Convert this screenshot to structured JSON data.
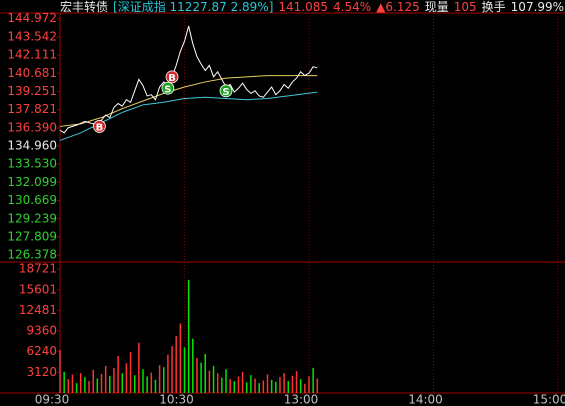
{
  "chart_data": {
    "type": "line",
    "header": [
      {
        "text": "宏丰转债",
        "color": "#e8e8e8"
      },
      {
        "text": "[深证成指 11227.87 2.89%]",
        "color": "#28c8d8"
      },
      {
        "text": "141.085",
        "color": "#ff4040"
      },
      {
        "text": "4.54%",
        "color": "#ff4040"
      },
      {
        "text": "▲6.125",
        "color": "#ff4040"
      },
      {
        "text": "现量",
        "color": "#e8e8e8"
      },
      {
        "text": "105",
        "color": "#ff4040"
      },
      {
        "text": "换手",
        "color": "#e8e8e8"
      },
      {
        "text": "107.99%",
        "color": "#e8e8e8"
      }
    ],
    "xlim": [
      0,
      240
    ],
    "xticks": [
      {
        "value": 0,
        "label": "09:30"
      },
      {
        "value": 60,
        "label": "10:30"
      },
      {
        "value": 120,
        "label": "13:00"
      },
      {
        "value": 180,
        "label": "14:00"
      },
      {
        "value": 240,
        "label": "15:00"
      }
    ],
    "ylim": [
      125.84,
      145.42
    ],
    "yticks": [
      144.972,
      143.542,
      142.111,
      140.681,
      139.251,
      137.821,
      {
        "value": 136.39,
        "label": "136.390"
      },
      {
        "value": 134.96,
        "label": "134.960"
      },
      {
        "value": 133.53,
        "label": "133.530"
      },
      132.099,
      130.669,
      129.239,
      127.809,
      126.378
    ],
    "ytick_colors": [
      "#ff4040",
      "#ff4040",
      "#ff4040",
      "#ff4040",
      "#ff4040",
      "#ff4040",
      "#ff4040",
      "#e8e8e8",
      "#30d030",
      "#30d030",
      "#30d030",
      "#30d030",
      "#30d030",
      "#30d030"
    ],
    "series": [
      {
        "color": "#ffffff",
        "x": [
          0,
          2,
          4,
          8,
          12,
          16,
          20,
          22,
          24,
          26,
          28,
          30,
          32,
          34,
          36,
          38,
          40,
          42,
          44,
          46,
          48,
          50,
          52,
          54,
          56,
          58,
          60,
          61,
          62,
          64,
          66,
          68,
          70,
          72,
          74,
          76,
          78,
          80,
          82,
          84,
          86,
          88,
          90,
          92,
          94,
          96,
          98,
          100,
          102,
          104,
          106,
          108,
          110,
          112,
          114,
          116,
          118,
          120,
          122,
          124
        ],
        "values": [
          136.2,
          136.0,
          136.4,
          136.6,
          136.9,
          136.7,
          137.0,
          137.4,
          137.2,
          138.0,
          138.3,
          138.1,
          138.6,
          138.4,
          139.3,
          140.2,
          139.7,
          138.9,
          139.0,
          138.6,
          139.6,
          140.0,
          139.8,
          140.4,
          141.3,
          142.4,
          143.2,
          143.8,
          144.4,
          143.0,
          142.0,
          141.4,
          140.9,
          141.3,
          140.4,
          140.8,
          140.2,
          139.6,
          139.8,
          139.2,
          139.5,
          139.9,
          139.4,
          139.1,
          139.3,
          138.9,
          138.8,
          139.2,
          139.6,
          139.0,
          139.3,
          139.8,
          139.5,
          140.0,
          140.3,
          140.8,
          140.5,
          140.7,
          141.2,
          141.1
        ]
      },
      {
        "color": "#e8d060",
        "x": [
          0,
          10,
          20,
          30,
          40,
          50,
          60,
          70,
          80,
          90,
          100,
          110,
          124
        ],
        "values": [
          136.5,
          136.7,
          137.2,
          137.9,
          138.5,
          139.1,
          139.6,
          140.0,
          140.3,
          140.4,
          140.5,
          140.5,
          140.5
        ]
      },
      {
        "color": "#40c8d8",
        "x": [
          0,
          10,
          20,
          30,
          40,
          50,
          60,
          70,
          80,
          90,
          100,
          110,
          124
        ],
        "values": [
          135.4,
          136.0,
          136.8,
          137.6,
          138.2,
          138.4,
          138.7,
          138.8,
          138.7,
          138.6,
          138.7,
          138.9,
          139.2
        ]
      }
    ],
    "signals": [
      {
        "label": "B",
        "x": 19,
        "value": 136.5,
        "color": "#d02828"
      },
      {
        "label": "S",
        "x": 52,
        "value": 139.5,
        "color": "#20a020"
      },
      {
        "label": "B",
        "x": 54,
        "value": 140.4,
        "color": "#d02828"
      },
      {
        "label": "S",
        "x": 80,
        "value": 139.3,
        "color": "#20a020"
      }
    ],
    "volume": {
      "ylim": [
        0,
        19800
      ],
      "yticks": [
        18721,
        15601,
        12481,
        9360,
        6240,
        3120
      ],
      "tick_color": "#ff4040",
      "x": [
        0,
        2,
        4,
        6,
        8,
        10,
        12,
        14,
        16,
        18,
        20,
        22,
        24,
        26,
        28,
        30,
        32,
        34,
        36,
        38,
        40,
        42,
        44,
        46,
        48,
        50,
        52,
        54,
        56,
        58,
        60,
        62,
        64,
        66,
        68,
        70,
        72,
        74,
        76,
        78,
        80,
        82,
        84,
        86,
        88,
        90,
        92,
        94,
        96,
        98,
        100,
        102,
        104,
        106,
        108,
        110,
        112,
        114,
        116,
        118,
        120,
        122,
        124
      ],
      "values": [
        6500,
        3200,
        2100,
        2800,
        1500,
        3000,
        2400,
        1800,
        3500,
        2200,
        2900,
        4100,
        2600,
        3800,
        5600,
        3000,
        4500,
        6200,
        2700,
        7600,
        3600,
        2500,
        3100,
        2000,
        4200,
        3900,
        5800,
        7100,
        8600,
        10500,
        6900,
        17100,
        8200,
        5300,
        4600,
        5900,
        3400,
        4100,
        3000,
        2300,
        3600,
        2100,
        1800,
        2500,
        3200,
        1600,
        2700,
        2200,
        1500,
        1900,
        2800,
        2000,
        1700,
        2400,
        3000,
        1800,
        2600,
        3300,
        2100,
        1400,
        2500,
        3800,
        2200
      ],
      "colors": [
        "#ff3232",
        "#00e600",
        "#ff3232",
        "#ff3232",
        "#00e600",
        "#ff3232",
        "#00e600",
        "#ff3232",
        "#ff3232",
        "#00e600",
        "#ff3232",
        "#ff3232",
        "#00e600",
        "#ff3232",
        "#ff3232",
        "#00e600",
        "#ff3232",
        "#ff3232",
        "#00e600",
        "#ff3232",
        "#00e600",
        "#00e600",
        "#ff3232",
        "#00e600",
        "#ff3232",
        "#00e600",
        "#ff3232",
        "#ff3232",
        "#ff3232",
        "#ff3232",
        "#00e600",
        "#00e600",
        "#00e600",
        "#ff3232",
        "#00e600",
        "#00e600",
        "#ff3232",
        "#00e600",
        "#ff3232",
        "#00e600",
        "#00e600",
        "#ff3232",
        "#00e600",
        "#ff3232",
        "#ff3232",
        "#00e600",
        "#00e600",
        "#ff3232",
        "#00e600",
        "#ff3232",
        "#ff3232",
        "#00e600",
        "#00e600",
        "#ff3232",
        "#ff3232",
        "#00e600",
        "#ff3232",
        "#ff3232",
        "#00e600",
        "#ff3232",
        "#ff3232",
        "#00e600",
        "#ff3232"
      ]
    }
  }
}
